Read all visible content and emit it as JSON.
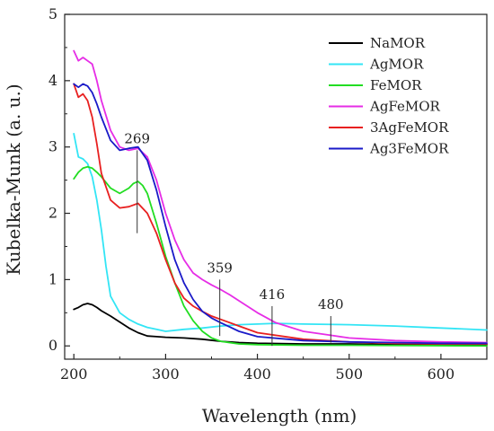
{
  "chart_data": {
    "type": "line",
    "xlabel": "Wavelength (nm)",
    "ylabel": "Kubelka-Munk (a. u.)",
    "xlim": [
      190,
      650
    ],
    "ylim": [
      -0.2,
      5
    ],
    "xticks": [
      200,
      300,
      400,
      500,
      600
    ],
    "yticks": [
      0,
      1,
      2,
      3,
      4,
      5
    ],
    "grid": false,
    "legend": "top-right",
    "series": [
      {
        "name": "NaMOR",
        "color": "#000000",
        "x": [
          200,
          205,
          210,
          215,
          220,
          225,
          230,
          240,
          250,
          260,
          270,
          280,
          290,
          300,
          320,
          340,
          360,
          380,
          400,
          450,
          500,
          550,
          600,
          650
        ],
        "y": [
          0.55,
          0.58,
          0.62,
          0.64,
          0.62,
          0.58,
          0.53,
          0.45,
          0.36,
          0.27,
          0.2,
          0.15,
          0.14,
          0.13,
          0.12,
          0.1,
          0.07,
          0.05,
          0.04,
          0.03,
          0.03,
          0.02,
          0.02,
          0.02
        ]
      },
      {
        "name": "AgMOR",
        "color": "#33E5F5",
        "x": [
          200,
          205,
          210,
          215,
          220,
          225,
          230,
          235,
          240,
          250,
          260,
          270,
          280,
          290,
          300,
          320,
          340,
          360,
          380,
          400,
          420,
          450,
          500,
          550,
          600,
          650
        ],
        "y": [
          3.2,
          2.85,
          2.82,
          2.75,
          2.55,
          2.2,
          1.75,
          1.2,
          0.75,
          0.5,
          0.4,
          0.33,
          0.28,
          0.25,
          0.22,
          0.25,
          0.27,
          0.3,
          0.32,
          0.33,
          0.34,
          0.33,
          0.32,
          0.3,
          0.27,
          0.24
        ]
      },
      {
        "name": "FeMOR",
        "color": "#22DD22",
        "x": [
          200,
          205,
          210,
          215,
          220,
          225,
          230,
          240,
          250,
          260,
          265,
          270,
          275,
          280,
          290,
          300,
          310,
          320,
          330,
          340,
          350,
          360,
          380,
          400,
          450,
          500,
          650
        ],
        "y": [
          2.52,
          2.62,
          2.68,
          2.7,
          2.68,
          2.62,
          2.55,
          2.38,
          2.3,
          2.38,
          2.45,
          2.48,
          2.42,
          2.3,
          1.85,
          1.35,
          0.95,
          0.6,
          0.38,
          0.22,
          0.12,
          0.07,
          0.03,
          0.02,
          0.01,
          0.01,
          0.0
        ]
      },
      {
        "name": "AgFeMOR",
        "color": "#E62DE6",
        "x": [
          200,
          205,
          210,
          215,
          220,
          225,
          230,
          240,
          250,
          260,
          270,
          280,
          290,
          300,
          310,
          320,
          330,
          340,
          350,
          360,
          370,
          380,
          400,
          420,
          450,
          480,
          500,
          550,
          600,
          650
        ],
        "y": [
          4.45,
          4.3,
          4.35,
          4.3,
          4.25,
          4.0,
          3.7,
          3.25,
          3.0,
          2.95,
          2.98,
          2.85,
          2.5,
          2.0,
          1.6,
          1.3,
          1.1,
          1.0,
          0.92,
          0.85,
          0.77,
          0.68,
          0.5,
          0.35,
          0.22,
          0.16,
          0.12,
          0.08,
          0.06,
          0.05
        ]
      },
      {
        "name": "3AgFeMOR",
        "color": "#E82020",
        "x": [
          200,
          205,
          210,
          215,
          220,
          225,
          230,
          240,
          250,
          260,
          270,
          280,
          290,
          300,
          310,
          320,
          330,
          340,
          350,
          360,
          380,
          400,
          450,
          500,
          550,
          600,
          650
        ],
        "y": [
          3.95,
          3.75,
          3.8,
          3.7,
          3.45,
          3.05,
          2.6,
          2.2,
          2.08,
          2.1,
          2.15,
          2.0,
          1.7,
          1.3,
          0.95,
          0.72,
          0.6,
          0.52,
          0.45,
          0.4,
          0.3,
          0.2,
          0.1,
          0.06,
          0.04,
          0.03,
          0.03
        ]
      },
      {
        "name": "Ag3FeMOR",
        "color": "#1A1AC8",
        "x": [
          200,
          205,
          210,
          215,
          220,
          225,
          230,
          240,
          250,
          260,
          270,
          280,
          290,
          300,
          310,
          320,
          330,
          340,
          350,
          360,
          380,
          400,
          450,
          500,
          550,
          600,
          650
        ],
        "y": [
          3.95,
          3.9,
          3.95,
          3.92,
          3.82,
          3.65,
          3.45,
          3.1,
          2.95,
          2.98,
          3.0,
          2.8,
          2.35,
          1.8,
          1.3,
          0.95,
          0.7,
          0.52,
          0.42,
          0.35,
          0.22,
          0.14,
          0.08,
          0.06,
          0.05,
          0.04,
          0.04
        ]
      }
    ],
    "annotations": [
      {
        "label": "269",
        "x": 269,
        "y_top": 2.95,
        "y_bottom": 1.7
      },
      {
        "label": "359",
        "x": 359,
        "y_top": 1.0,
        "y_bottom": 0.15
      },
      {
        "label": "416",
        "x": 416,
        "y_top": 0.6,
        "y_bottom": 0.0
      },
      {
        "label": "480",
        "x": 480,
        "y_top": 0.45,
        "y_bottom": 0.05
      }
    ]
  }
}
